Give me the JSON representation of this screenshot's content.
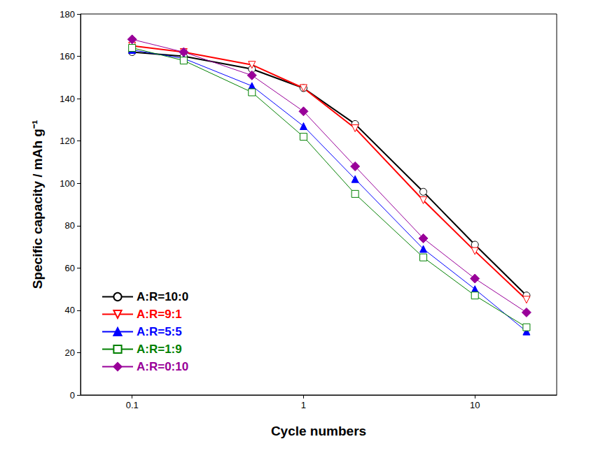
{
  "chart_data": {
    "type": "line",
    "x_label": "Cycle numbers",
    "y_label": "Specific capacity / mAh g⁻¹",
    "x": [
      0.1,
      0.2,
      0.5,
      1,
      2,
      5,
      10,
      20
    ],
    "series": [
      {
        "name": "A:R=10:0",
        "color": "#000000",
        "marker": "open_circle",
        "values": [
          162,
          160,
          154,
          145,
          128,
          96,
          71,
          47
        ]
      },
      {
        "name": "A:R=9:1",
        "color": "#ff0000",
        "marker": "open_triangle_down",
        "values": [
          165,
          162,
          156,
          145,
          126,
          92,
          68,
          45
        ]
      },
      {
        "name": "A:R=5:5",
        "color": "#0000ff",
        "marker": "triangle",
        "values": [
          163,
          159,
          146,
          127,
          102,
          69,
          50,
          30
        ]
      },
      {
        "name": "A:R=1:9",
        "color": "#008000",
        "marker": "open_square",
        "values": [
          164,
          158,
          143,
          122,
          95,
          65,
          47,
          32
        ]
      },
      {
        "name": "A:R=0:10",
        "color": "#990099",
        "marker": "diamond",
        "values": [
          168,
          162,
          151,
          134,
          108,
          74,
          55,
          39
        ]
      }
    ],
    "log": "x",
    "xlim": [
      0.05,
      30
    ],
    "xticks": [
      0.1,
      1,
      10
    ],
    "ylim": [
      0,
      180
    ],
    "yticks": [
      0,
      20,
      40,
      60,
      80,
      100,
      120,
      140,
      160,
      180
    ],
    "grid": false,
    "legend": "lower left"
  }
}
